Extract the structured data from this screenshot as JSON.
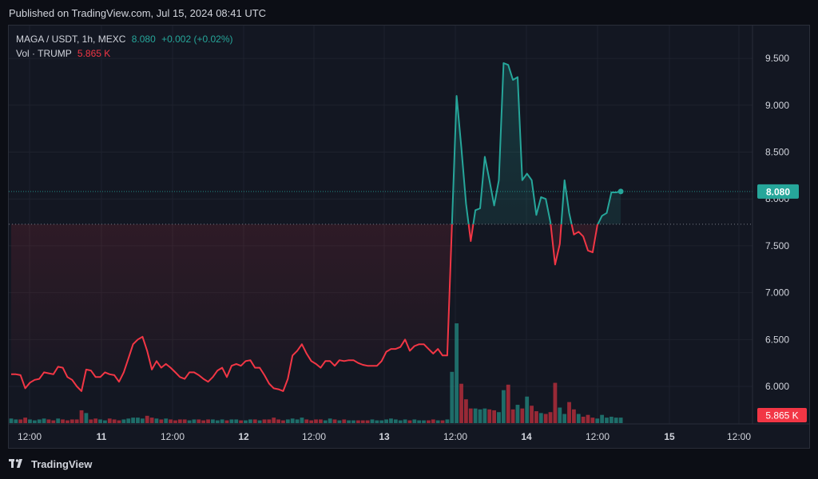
{
  "header": {
    "published": "Published on TradingView.com, Jul 15, 2024 08:41 UTC"
  },
  "legend": {
    "symbol": "MAGA / USDT, 1h, MEXC",
    "price": "8.080",
    "change": "+0.002 (+0.02%)",
    "vol_label": "Vol · TRUMP",
    "vol_value": "5.865 K"
  },
  "footer": {
    "brand": "TradingView"
  },
  "colors": {
    "up": "#26a69a",
    "down": "#f23645",
    "background": "#131722",
    "grid": "#1e222d",
    "text": "#d1d4dc"
  },
  "chart_data": {
    "type": "line",
    "title": "",
    "xlabel": "",
    "ylabel": "",
    "x_ticks": [
      "12:00",
      "11",
      "12:00",
      "12",
      "12:00",
      "13",
      "12:00",
      "14",
      "12:00",
      "15",
      "12:00"
    ],
    "y_ticks": [
      "6.000",
      "6.500",
      "7.000",
      "7.500",
      "8.000",
      "8.500",
      "9.000",
      "9.500"
    ],
    "ylim": [
      5.6,
      9.85
    ],
    "baseline": 7.73,
    "last_price": 8.08,
    "last_price_label": "8.080",
    "last_volume_label": "5.865 K",
    "grid": true,
    "price_series": [
      6.13,
      6.13,
      6.12,
      5.98,
      6.04,
      6.07,
      6.08,
      6.15,
      6.14,
      6.13,
      6.21,
      6.2,
      6.1,
      6.07,
      6.0,
      5.95,
      6.18,
      6.17,
      6.1,
      6.1,
      6.15,
      6.13,
      6.12,
      6.05,
      6.15,
      6.3,
      6.45,
      6.5,
      6.53,
      6.38,
      6.18,
      6.27,
      6.2,
      6.24,
      6.2,
      6.15,
      6.1,
      6.08,
      6.15,
      6.15,
      6.12,
      6.08,
      6.05,
      6.1,
      6.17,
      6.2,
      6.1,
      6.22,
      6.24,
      6.22,
      6.27,
      6.28,
      6.2,
      6.2,
      6.12,
      6.03,
      5.98,
      5.97,
      5.95,
      6.08,
      6.33,
      6.38,
      6.45,
      6.35,
      6.27,
      6.24,
      6.2,
      6.27,
      6.27,
      6.22,
      6.28,
      6.27,
      6.28,
      6.28,
      6.25,
      6.23,
      6.22,
      6.22,
      6.22,
      6.27,
      6.37,
      6.4,
      6.4,
      6.42,
      6.5,
      6.38,
      6.43,
      6.45,
      6.45,
      6.4,
      6.35,
      6.4,
      6.33,
      6.33,
      7.73,
      9.1,
      8.55,
      7.95,
      7.55,
      7.88,
      7.9,
      8.45,
      8.2,
      7.93,
      8.2,
      9.45,
      9.43,
      9.27,
      9.3,
      8.2,
      8.27,
      8.2,
      7.83,
      8.02,
      8.0,
      7.75,
      7.3,
      7.52,
      8.2,
      7.85,
      7.62,
      7.65,
      7.6,
      7.45,
      7.43,
      7.72,
      7.82,
      7.85,
      8.07,
      8.07,
      8.08
    ],
    "volume_series": [
      0.5,
      0.4,
      0.4,
      0.6,
      0.4,
      0.3,
      0.4,
      0.5,
      0.4,
      0.3,
      0.5,
      0.4,
      0.3,
      0.4,
      0.4,
      1.4,
      1.1,
      0.4,
      0.5,
      0.4,
      0.3,
      0.5,
      0.4,
      0.3,
      0.4,
      0.5,
      0.6,
      0.6,
      0.5,
      0.8,
      0.6,
      0.5,
      0.4,
      0.5,
      0.4,
      0.3,
      0.4,
      0.4,
      0.3,
      0.4,
      0.4,
      0.3,
      0.4,
      0.4,
      0.3,
      0.4,
      0.3,
      0.4,
      0.4,
      0.3,
      0.3,
      0.4,
      0.4,
      0.3,
      0.4,
      0.4,
      0.6,
      0.4,
      0.3,
      0.4,
      0.5,
      0.4,
      0.6,
      0.4,
      0.3,
      0.4,
      0.4,
      0.3,
      0.5,
      0.4,
      0.3,
      0.4,
      0.3,
      0.3,
      0.3,
      0.3,
      0.3,
      0.4,
      0.3,
      0.3,
      0.4,
      0.5,
      0.4,
      0.3,
      0.4,
      0.3,
      0.4,
      0.3,
      0.3,
      0.3,
      0.4,
      0.3,
      0.3,
      0.4,
      5.6,
      10.9,
      4.3,
      2.6,
      1.6,
      1.6,
      1.5,
      1.6,
      1.5,
      1.4,
      1.2,
      3.6,
      4.2,
      1.5,
      2.0,
      1.6,
      2.9,
      1.9,
      1.3,
      1.1,
      1.0,
      1.2,
      4.4,
      1.7,
      1.0,
      2.3,
      1.5,
      1.0,
      0.7,
      0.9,
      0.6,
      0.5,
      0.9,
      0.6,
      0.7,
      0.6,
      0.6
    ],
    "volume_max": 10.9
  }
}
